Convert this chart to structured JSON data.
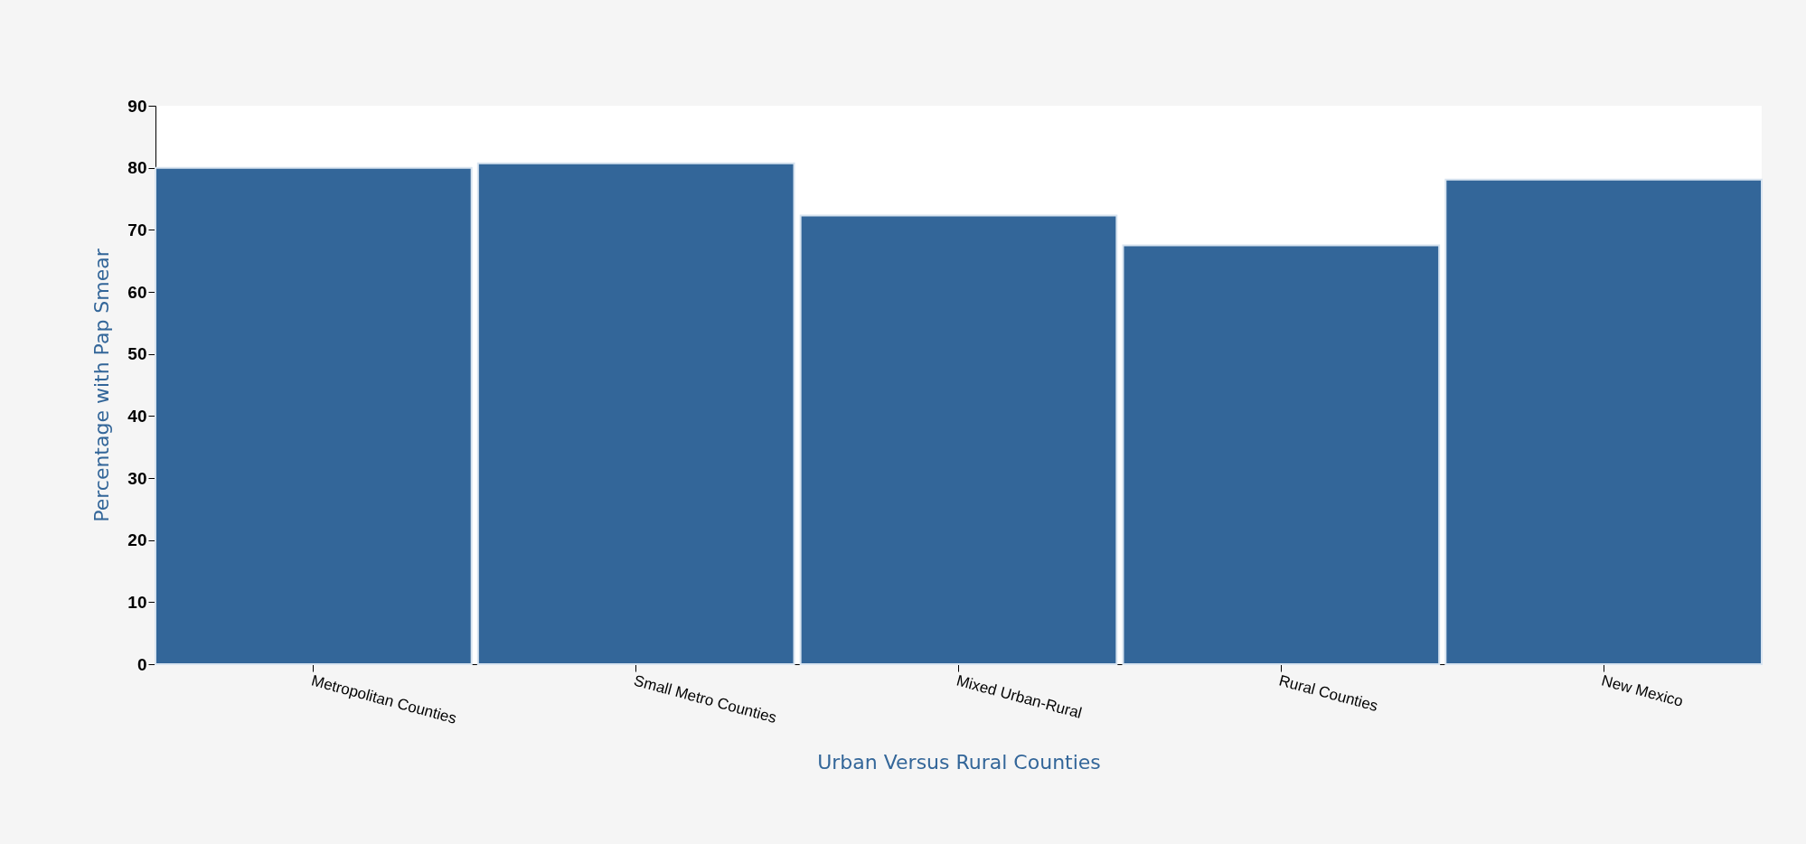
{
  "chart_data": {
    "type": "bar",
    "xlabel": "Urban Versus Rural Counties",
    "ylabel": "Percentage with Pap Smear",
    "categories": [
      "Metropolitan Counties",
      "Small Metro Counties",
      "Mixed Urban-Rural",
      "Rural Counties",
      "New Mexico"
    ],
    "values": [
      80.0,
      80.7,
      72.3,
      67.5,
      78.1
    ],
    "color": "#336699",
    "ylim": [
      0,
      90
    ],
    "yticks": [
      0,
      10,
      20,
      30,
      40,
      50,
      60,
      70,
      80,
      90
    ],
    "grid": false
  }
}
